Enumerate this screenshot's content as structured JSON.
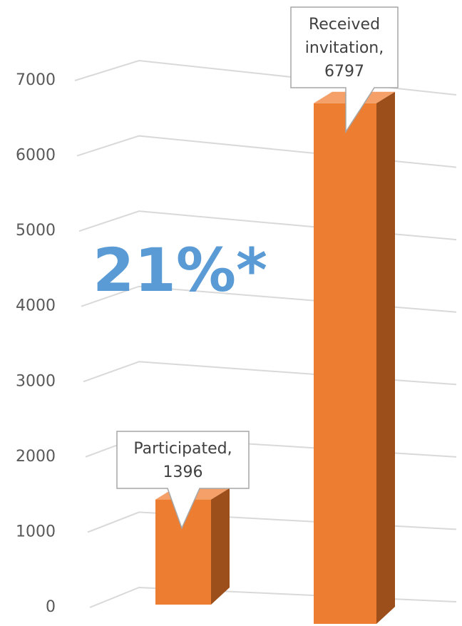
{
  "chart_data": {
    "type": "bar3d",
    "categories": [
      "Participated",
      "Received invitation"
    ],
    "values": [
      1396,
      6797
    ],
    "value_labels": [
      [
        "Participated,",
        "1396"
      ],
      [
        "Received",
        "invitation,",
        "6797"
      ]
    ],
    "color": "#ed7d31",
    "side_color": "#9c4f1b",
    "annotation": "21%*",
    "annotation_color": "#5b9bd5",
    "ylim": [
      0,
      7000
    ],
    "yticks": [
      0,
      1000,
      2000,
      3000,
      4000,
      5000,
      6000,
      7000
    ],
    "grid": true
  }
}
